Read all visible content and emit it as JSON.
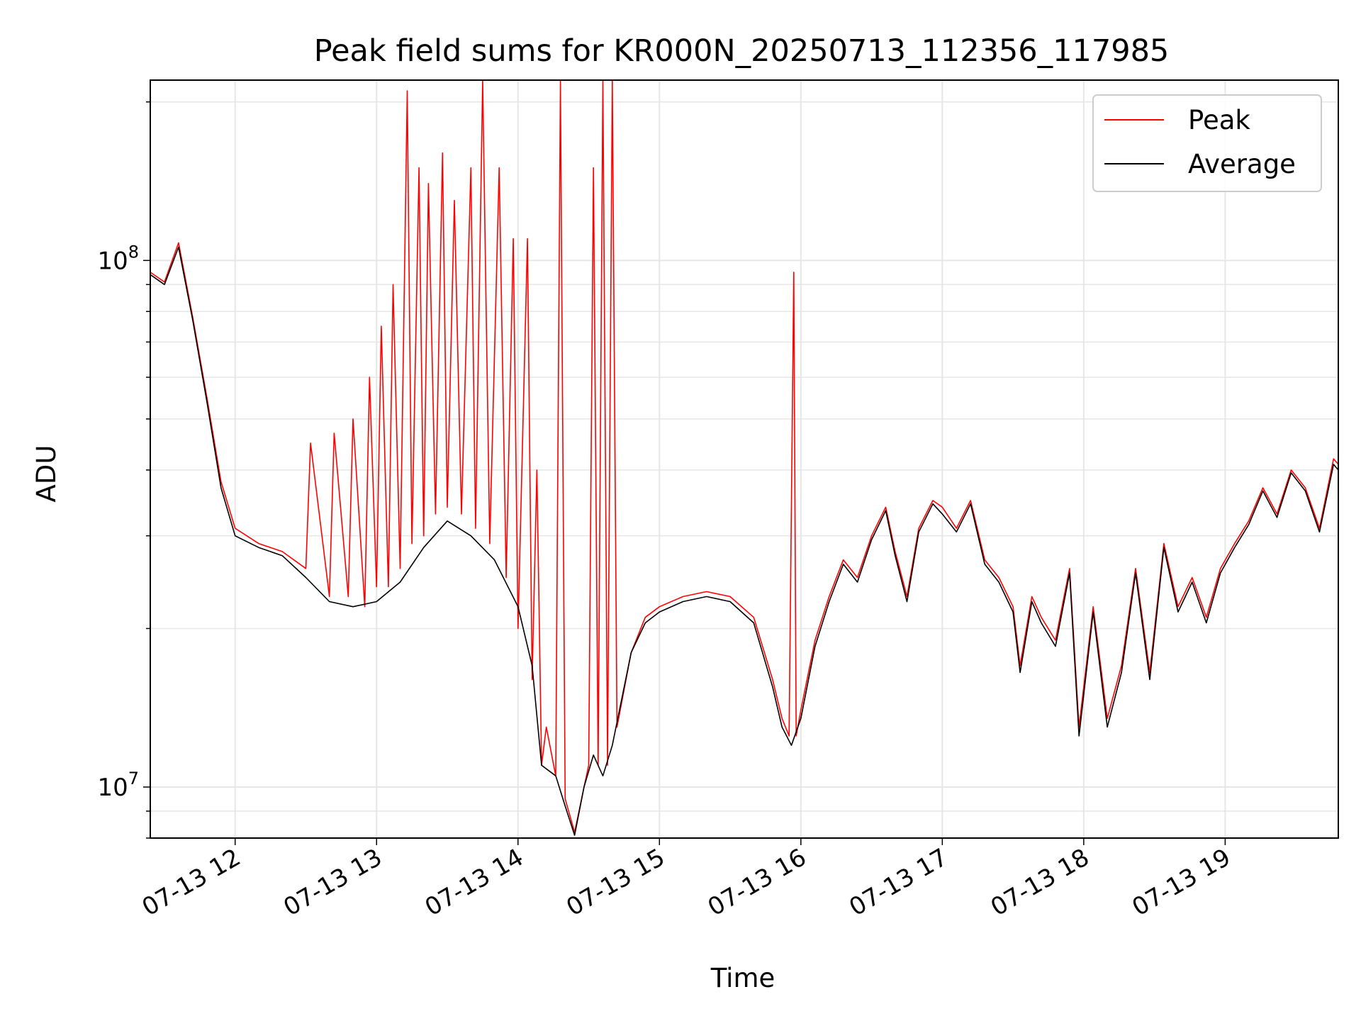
{
  "chart_data": {
    "type": "line",
    "title": "Peak field sums for KR000N_20250713_112356_117985",
    "xlabel": "Time",
    "ylabel": "ADU",
    "yscale": "log",
    "ylim": [
      8000000,
      220000000
    ],
    "xlim": [
      "07-13 11:24",
      "07-13 19:48"
    ],
    "grid": true,
    "legend_position": "top-right",
    "x_ticks": [
      "07-13 12",
      "07-13 13",
      "07-13 14",
      "07-13 15",
      "07-13 16",
      "07-13 17",
      "07-13 18",
      "07-13 19"
    ],
    "y_ticks": [
      {
        "base": "10",
        "exp": "7",
        "value": 10000000
      },
      {
        "base": "10",
        "exp": "8",
        "value": 100000000
      }
    ],
    "series": [
      {
        "name": "Peak",
        "color": "#ff0000",
        "points": [
          [
            "07-13 11:24",
            95000000
          ],
          [
            "07-13 11:30",
            91000000
          ],
          [
            "07-13 11:36",
            108000000
          ],
          [
            "07-13 11:42",
            78000000
          ],
          [
            "07-13 11:48",
            55000000
          ],
          [
            "07-13 11:54",
            38000000
          ],
          [
            "07-13 12:00",
            31000000
          ],
          [
            "07-13 12:10",
            29000000
          ],
          [
            "07-13 12:20",
            28000000
          ],
          [
            "07-13 12:30",
            26000000
          ],
          [
            "07-13 12:32",
            45000000
          ],
          [
            "07-13 12:40",
            23000000
          ],
          [
            "07-13 12:42",
            47000000
          ],
          [
            "07-13 12:48",
            23000000
          ],
          [
            "07-13 12:50",
            50000000
          ],
          [
            "07-13 12:55",
            22000000
          ],
          [
            "07-13 12:57",
            60000000
          ],
          [
            "07-13 13:00",
            24000000
          ],
          [
            "07-13 13:02",
            75000000
          ],
          [
            "07-13 13:05",
            24000000
          ],
          [
            "07-13 13:07",
            90000000
          ],
          [
            "07-13 13:10",
            26000000
          ],
          [
            "07-13 13:13",
            210000000
          ],
          [
            "07-13 13:15",
            29000000
          ],
          [
            "07-13 13:18",
            150000000
          ],
          [
            "07-13 13:20",
            30000000
          ],
          [
            "07-13 13:22",
            140000000
          ],
          [
            "07-13 13:25",
            33000000
          ],
          [
            "07-13 13:28",
            160000000
          ],
          [
            "07-13 13:30",
            34000000
          ],
          [
            "07-13 13:33",
            130000000
          ],
          [
            "07-13 13:36",
            33000000
          ],
          [
            "07-13 13:40",
            150000000
          ],
          [
            "07-13 13:42",
            31000000
          ],
          [
            "07-13 13:45",
            230000000
          ],
          [
            "07-13 13:48",
            29000000
          ],
          [
            "07-13 13:52",
            150000000
          ],
          [
            "07-13 13:55",
            25000000
          ],
          [
            "07-13 13:58",
            110000000
          ],
          [
            "07-13 14:00",
            20000000
          ],
          [
            "07-13 14:04",
            110000000
          ],
          [
            "07-13 14:06",
            16000000
          ],
          [
            "07-13 14:08",
            40000000
          ],
          [
            "07-13 14:10",
            11000000
          ],
          [
            "07-13 14:12",
            13000000
          ],
          [
            "07-13 14:16",
            10500000
          ],
          [
            "07-13 14:18",
            230000000
          ],
          [
            "07-13 14:20",
            9500000
          ],
          [
            "07-13 14:24",
            8200000
          ],
          [
            "07-13 14:28",
            10000000
          ],
          [
            "07-13 14:30",
            11000000
          ],
          [
            "07-13 14:32",
            150000000
          ],
          [
            "07-13 14:34",
            11000000
          ],
          [
            "07-13 14:36",
            230000000
          ],
          [
            "07-13 14:38",
            11000000
          ],
          [
            "07-13 14:40",
            230000000
          ],
          [
            "07-13 14:42",
            13000000
          ],
          [
            "07-13 14:48",
            18000000
          ],
          [
            "07-13 14:54",
            21000000
          ],
          [
            "07-13 15:00",
            22000000
          ],
          [
            "07-13 15:10",
            23000000
          ],
          [
            "07-13 15:20",
            23500000
          ],
          [
            "07-13 15:30",
            23000000
          ],
          [
            "07-13 15:40",
            21000000
          ],
          [
            "07-13 15:48",
            16000000
          ],
          [
            "07-13 15:52",
            13500000
          ],
          [
            "07-13 15:55",
            12500000
          ],
          [
            "07-13 15:57",
            95000000
          ],
          [
            "07-13 15:58",
            12500000
          ],
          [
            "07-13 16:00",
            14000000
          ],
          [
            "07-13 16:06",
            19000000
          ],
          [
            "07-13 16:12",
            23000000
          ],
          [
            "07-13 16:18",
            27000000
          ],
          [
            "07-13 16:24",
            25000000
          ],
          [
            "07-13 16:30",
            30000000
          ],
          [
            "07-13 16:36",
            34000000
          ],
          [
            "07-13 16:40",
            28000000
          ],
          [
            "07-13 16:45",
            23000000
          ],
          [
            "07-13 16:50",
            31000000
          ],
          [
            "07-13 16:56",
            35000000
          ],
          [
            "07-13 17:00",
            34000000
          ],
          [
            "07-13 17:06",
            31000000
          ],
          [
            "07-13 17:12",
            35000000
          ],
          [
            "07-13 17:18",
            27000000
          ],
          [
            "07-13 17:24",
            25000000
          ],
          [
            "07-13 17:30",
            22000000
          ],
          [
            "07-13 17:33",
            17000000
          ],
          [
            "07-13 17:38",
            23000000
          ],
          [
            "07-13 17:42",
            21000000
          ],
          [
            "07-13 17:48",
            19000000
          ],
          [
            "07-13 17:54",
            26000000
          ],
          [
            "07-13 17:58",
            13000000
          ],
          [
            "07-13 18:04",
            22000000
          ],
          [
            "07-13 18:10",
            13500000
          ],
          [
            "07-13 18:16",
            17000000
          ],
          [
            "07-13 18:22",
            26000000
          ],
          [
            "07-13 18:28",
            16500000
          ],
          [
            "07-13 18:34",
            29000000
          ],
          [
            "07-13 18:40",
            22000000
          ],
          [
            "07-13 18:46",
            25000000
          ],
          [
            "07-13 18:52",
            21000000
          ],
          [
            "07-13 18:58",
            26000000
          ],
          [
            "07-13 19:04",
            29000000
          ],
          [
            "07-13 19:10",
            32000000
          ],
          [
            "07-13 19:16",
            37000000
          ],
          [
            "07-13 19:22",
            33000000
          ],
          [
            "07-13 19:28",
            40000000
          ],
          [
            "07-13 19:34",
            37000000
          ],
          [
            "07-13 19:40",
            31000000
          ],
          [
            "07-13 19:46",
            42000000
          ],
          [
            "07-13 19:48",
            41000000
          ]
        ]
      },
      {
        "name": "Average",
        "color": "#000000",
        "points": [
          [
            "07-13 11:24",
            94000000
          ],
          [
            "07-13 11:30",
            90000000
          ],
          [
            "07-13 11:36",
            106000000
          ],
          [
            "07-13 11:42",
            77000000
          ],
          [
            "07-13 11:48",
            54000000
          ],
          [
            "07-13 11:54",
            37000000
          ],
          [
            "07-13 12:00",
            30000000
          ],
          [
            "07-13 12:10",
            28500000
          ],
          [
            "07-13 12:20",
            27500000
          ],
          [
            "07-13 12:30",
            25000000
          ],
          [
            "07-13 12:40",
            22500000
          ],
          [
            "07-13 12:50",
            22000000
          ],
          [
            "07-13 13:00",
            22500000
          ],
          [
            "07-13 13:10",
            24500000
          ],
          [
            "07-13 13:20",
            28500000
          ],
          [
            "07-13 13:30",
            32000000
          ],
          [
            "07-13 13:40",
            30000000
          ],
          [
            "07-13 13:50",
            27000000
          ],
          [
            "07-13 14:00",
            22000000
          ],
          [
            "07-13 14:06",
            17000000
          ],
          [
            "07-13 14:10",
            11000000
          ],
          [
            "07-13 14:16",
            10500000
          ],
          [
            "07-13 14:20",
            9200000
          ],
          [
            "07-13 14:24",
            8100000
          ],
          [
            "07-13 14:28",
            10000000
          ],
          [
            "07-13 14:32",
            11500000
          ],
          [
            "07-13 14:36",
            10500000
          ],
          [
            "07-13 14:40",
            12000000
          ],
          [
            "07-13 14:48",
            18000000
          ],
          [
            "07-13 14:54",
            20500000
          ],
          [
            "07-13 15:00",
            21500000
          ],
          [
            "07-13 15:10",
            22500000
          ],
          [
            "07-13 15:20",
            23000000
          ],
          [
            "07-13 15:30",
            22500000
          ],
          [
            "07-13 15:40",
            20500000
          ],
          [
            "07-13 15:48",
            15500000
          ],
          [
            "07-13 15:52",
            13000000
          ],
          [
            "07-13 15:56",
            12000000
          ],
          [
            "07-13 16:00",
            13500000
          ],
          [
            "07-13 16:06",
            18500000
          ],
          [
            "07-13 16:12",
            22500000
          ],
          [
            "07-13 16:18",
            26500000
          ],
          [
            "07-13 16:24",
            24500000
          ],
          [
            "07-13 16:30",
            29500000
          ],
          [
            "07-13 16:36",
            33500000
          ],
          [
            "07-13 16:40",
            27500000
          ],
          [
            "07-13 16:45",
            22500000
          ],
          [
            "07-13 16:50",
            30500000
          ],
          [
            "07-13 16:56",
            34500000
          ],
          [
            "07-13 17:00",
            33000000
          ],
          [
            "07-13 17:06",
            30500000
          ],
          [
            "07-13 17:12",
            34500000
          ],
          [
            "07-13 17:18",
            26500000
          ],
          [
            "07-13 17:24",
            24500000
          ],
          [
            "07-13 17:30",
            21500000
          ],
          [
            "07-13 17:33",
            16500000
          ],
          [
            "07-13 17:38",
            22500000
          ],
          [
            "07-13 17:42",
            20500000
          ],
          [
            "07-13 17:48",
            18500000
          ],
          [
            "07-13 17:54",
            25500000
          ],
          [
            "07-13 17:58",
            12500000
          ],
          [
            "07-13 18:04",
            21500000
          ],
          [
            "07-13 18:10",
            13000000
          ],
          [
            "07-13 18:16",
            16500000
          ],
          [
            "07-13 18:22",
            25500000
          ],
          [
            "07-13 18:28",
            16000000
          ],
          [
            "07-13 18:34",
            28500000
          ],
          [
            "07-13 18:40",
            21500000
          ],
          [
            "07-13 18:46",
            24500000
          ],
          [
            "07-13 18:52",
            20500000
          ],
          [
            "07-13 18:58",
            25500000
          ],
          [
            "07-13 19:04",
            28500000
          ],
          [
            "07-13 19:10",
            31500000
          ],
          [
            "07-13 19:16",
            36500000
          ],
          [
            "07-13 19:22",
            32500000
          ],
          [
            "07-13 19:28",
            39500000
          ],
          [
            "07-13 19:34",
            36500000
          ],
          [
            "07-13 19:40",
            30500000
          ],
          [
            "07-13 19:46",
            41000000
          ],
          [
            "07-13 19:48",
            40000000
          ]
        ]
      }
    ]
  }
}
